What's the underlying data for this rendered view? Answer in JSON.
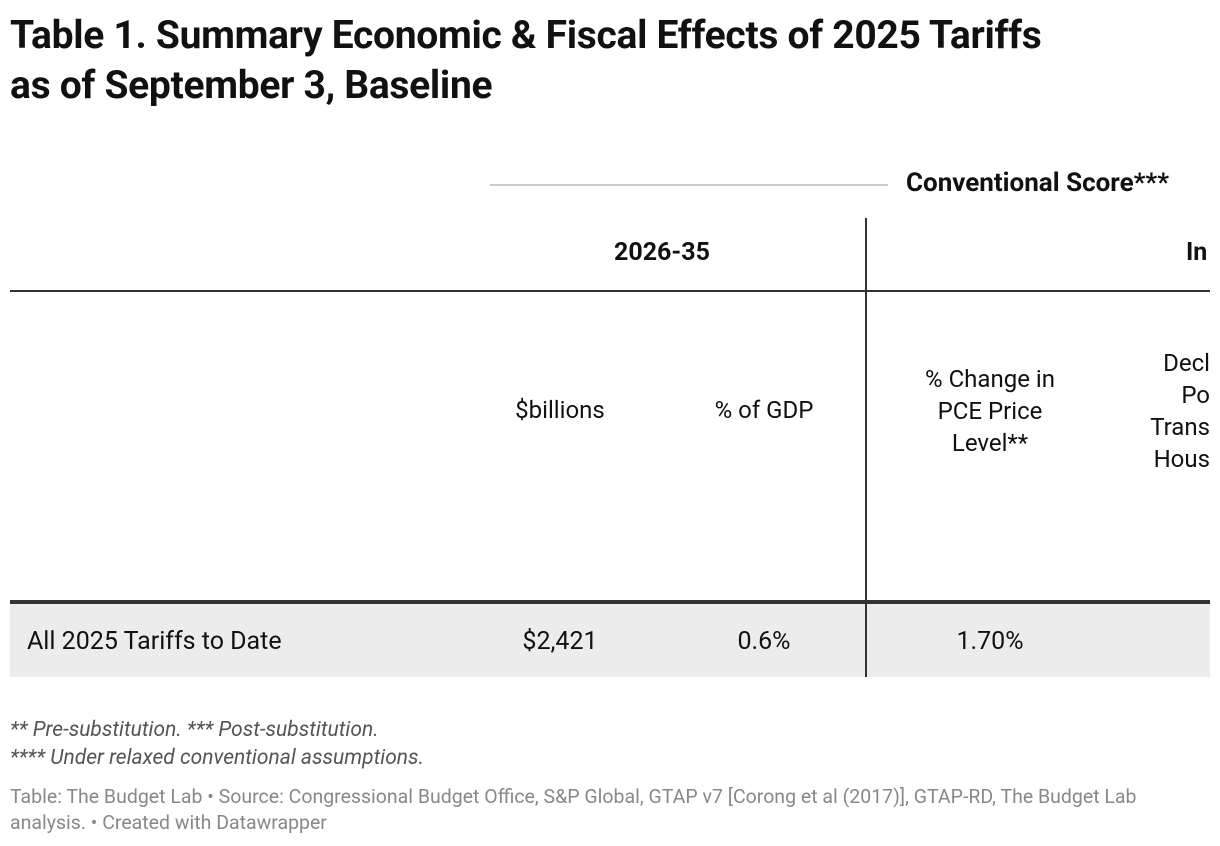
{
  "header": {
    "title": [
      "Table 1. Summary Economic & Fiscal Effects of 2025 Tariffs",
      "as of September 3, Baseline"
    ]
  },
  "table": {
    "group_header": "Conventional Score***",
    "column_groups": [
      "2026-35",
      "In"
    ],
    "columns": [
      "$billions",
      "% of GDP",
      "% Change in PCE Price Level**",
      [
        "Decl",
        "Po",
        "Trans",
        "Hous"
      ]
    ],
    "rows": [
      [
        "All 2025 Tariffs to Date",
        "$2,421",
        "0.6%",
        "1.70%"
      ]
    ]
  },
  "notes": [
    "** Pre-substitution. *** Post-substitution.",
    "**** Under relaxed conventional assumptions."
  ],
  "footer": "Table: The Budget Lab • Source: Congressional Budget Office, S&P Global, GTAP v7 [Corong et al (2017)], GTAP-RD, The Budget Lab analysis. • Created with Datawrapper"
}
